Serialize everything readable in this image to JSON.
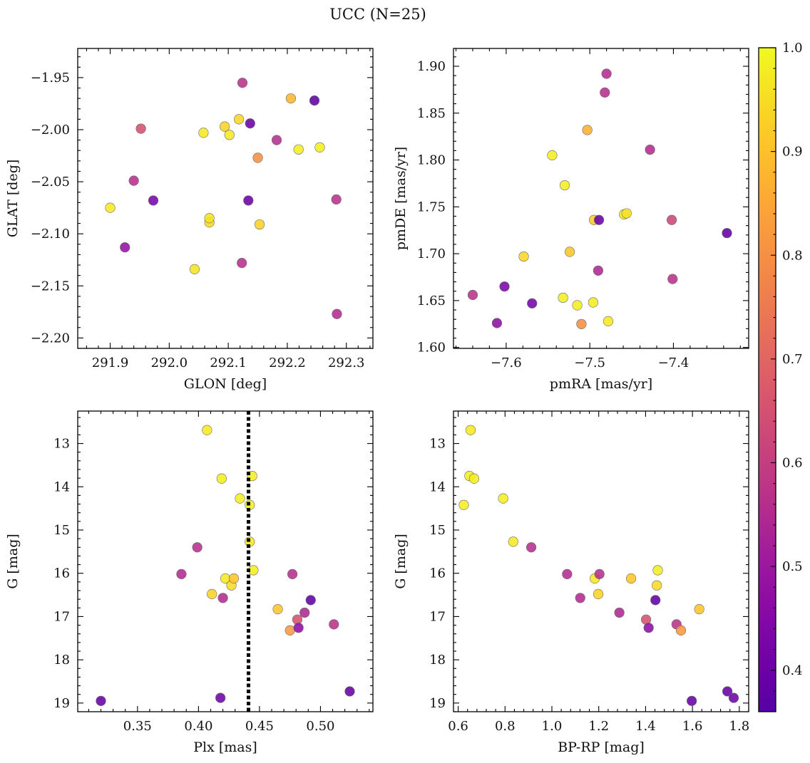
{
  "figure": {
    "title": "UCC (N=25)"
  },
  "chart_data": [
    {
      "type": "scatter",
      "name": "glon-glat",
      "xlabel": "GLON [deg]",
      "ylabel": "GLAT [deg]",
      "xlim": [
        291.845,
        292.345
      ],
      "ylim": [
        -2.21,
        -1.922
      ],
      "xticks": [
        291.9,
        292.0,
        292.1,
        292.2,
        292.3
      ],
      "xtick_labels": [
        "291.9",
        "292.0",
        "292.1",
        "292.2",
        "292.3"
      ],
      "yticks": [
        -1.95,
        -2.0,
        -2.05,
        -2.1,
        -2.15,
        -2.2
      ],
      "ytick_labels": [
        "−1.95",
        "−2.00",
        "−2.05",
        "−2.10",
        "−2.15",
        "−2.20"
      ],
      "y_inverted": false,
      "x": [
        291.9,
        291.925,
        291.94,
        291.952,
        291.973,
        292.043,
        292.058,
        292.068,
        292.068,
        292.094,
        292.102,
        292.118,
        292.123,
        292.124,
        292.134,
        292.137,
        292.15,
        292.153,
        292.182,
        292.206,
        292.219,
        292.246,
        292.255,
        292.283,
        292.284
      ],
      "y": [
        -2.075,
        -2.113,
        -2.049,
        -1.999,
        -2.068,
        -2.134,
        -2.003,
        -2.089,
        -2.085,
        -1.997,
        -2.005,
        -1.99,
        -2.128,
        -1.955,
        -2.068,
        -1.994,
        -2.027,
        -2.091,
        -2.01,
        -1.97,
        -2.019,
        -1.972,
        -2.017,
        -2.067,
        -2.177
      ],
      "c": [
        0.97,
        0.48,
        0.56,
        0.65,
        0.42,
        0.96,
        0.97,
        0.95,
        0.96,
        0.93,
        0.97,
        0.94,
        0.56,
        0.57,
        0.4,
        0.39,
        0.8,
        0.93,
        0.56,
        0.88,
        0.98,
        0.38,
        0.98,
        0.57,
        0.55
      ]
    },
    {
      "type": "scatter",
      "name": "pmra-pmde",
      "xlabel": "pmRA [mas/yr]",
      "ylabel": "pmDE [mas/yr]",
      "xlim": [
        -7.663,
        -7.31
      ],
      "ylim": [
        1.599,
        1.919
      ],
      "xticks": [
        -7.6,
        -7.5,
        -7.4
      ],
      "xtick_labels": [
        "−7.6",
        "−7.5",
        "−7.4"
      ],
      "yticks": [
        1.6,
        1.65,
        1.7,
        1.75,
        1.8,
        1.85,
        1.9
      ],
      "ytick_labels": [
        "1.60",
        "1.65",
        "1.70",
        "1.75",
        "1.80",
        "1.85",
        "1.90"
      ],
      "y_inverted": false,
      "x": [
        -7.64,
        -7.611,
        -7.602,
        -7.579,
        -7.569,
        -7.545,
        -7.532,
        -7.53,
        -7.524,
        -7.515,
        -7.51,
        -7.503,
        -7.496,
        -7.495,
        -7.49,
        -7.489,
        -7.482,
        -7.48,
        -7.478,
        -7.459,
        -7.456,
        -7.428,
        -7.402,
        -7.401,
        -7.336
      ],
      "y": [
        1.656,
        1.626,
        1.665,
        1.697,
        1.647,
        1.805,
        1.653,
        1.773,
        1.702,
        1.645,
        1.625,
        1.832,
        1.648,
        1.736,
        1.682,
        1.736,
        1.872,
        1.892,
        1.628,
        1.742,
        1.743,
        1.811,
        1.736,
        1.673,
        1.722
      ],
      "c": [
        0.57,
        0.47,
        0.43,
        0.94,
        0.42,
        0.98,
        0.98,
        0.98,
        0.91,
        0.98,
        0.8,
        0.87,
        0.98,
        0.92,
        0.54,
        0.4,
        0.56,
        0.55,
        0.97,
        0.97,
        0.96,
        0.55,
        0.62,
        0.57,
        0.38
      ]
    },
    {
      "type": "scatter",
      "name": "plx-g",
      "xlabel": "Plx [mas]",
      "ylabel": "G [mag]",
      "xlim": [
        0.301,
        0.543
      ],
      "ylim": [
        19.2,
        12.25
      ],
      "xticks": [
        0.35,
        0.4,
        0.45,
        0.5
      ],
      "xtick_labels": [
        "0.35",
        "0.40",
        "0.45",
        "0.50"
      ],
      "yticks": [
        13,
        14,
        15,
        16,
        17,
        18,
        19
      ],
      "ytick_labels": [
        "13",
        "14",
        "15",
        "16",
        "17",
        "18",
        "19"
      ],
      "y_inverted": true,
      "vline": 0.441,
      "x": [
        0.32,
        0.386,
        0.399,
        0.407,
        0.411,
        0.418,
        0.419,
        0.42,
        0.422,
        0.427,
        0.429,
        0.434,
        0.442,
        0.442,
        0.444,
        0.445,
        0.465,
        0.475,
        0.477,
        0.481,
        0.482,
        0.487,
        0.492,
        0.511,
        0.524
      ],
      "y": [
        18.95,
        16.02,
        15.4,
        12.69,
        16.48,
        18.88,
        13.81,
        16.57,
        16.12,
        16.28,
        16.12,
        14.27,
        14.42,
        15.27,
        13.75,
        15.93,
        16.83,
        17.32,
        16.02,
        17.07,
        17.26,
        16.91,
        16.62,
        17.18,
        18.73
      ],
      "c": [
        0.39,
        0.55,
        0.56,
        0.97,
        0.93,
        0.41,
        0.98,
        0.55,
        0.97,
        0.95,
        0.91,
        0.98,
        0.98,
        0.97,
        0.98,
        0.98,
        0.91,
        0.82,
        0.56,
        0.65,
        0.47,
        0.54,
        0.38,
        0.57,
        0.39
      ]
    },
    {
      "type": "scatter",
      "name": "bprp-g",
      "xlabel": "BP-RP [mag]",
      "ylabel": "G [mag]",
      "xlim": [
        0.58,
        1.84
      ],
      "ylim": [
        19.2,
        12.25
      ],
      "xticks": [
        0.6,
        0.8,
        1.0,
        1.2,
        1.4,
        1.6,
        1.8
      ],
      "xtick_labels": [
        "0.6",
        "0.8",
        "1.0",
        "1.2",
        "1.4",
        "1.6",
        "1.8"
      ],
      "yticks": [
        13,
        14,
        15,
        16,
        17,
        18,
        19
      ],
      "ytick_labels": [
        "13",
        "14",
        "15",
        "16",
        "17",
        "18",
        "19"
      ],
      "y_inverted": true,
      "x": [
        0.624,
        0.648,
        0.653,
        0.668,
        0.792,
        0.835,
        0.912,
        1.065,
        1.121,
        1.183,
        1.198,
        1.203,
        1.288,
        1.338,
        1.402,
        1.413,
        1.442,
        1.448,
        1.452,
        1.532,
        1.551,
        1.597,
        1.629,
        1.749,
        1.776
      ],
      "y": [
        14.42,
        13.75,
        12.69,
        13.81,
        14.27,
        15.27,
        15.4,
        16.02,
        16.57,
        16.12,
        16.48,
        16.02,
        16.91,
        16.12,
        17.07,
        17.26,
        16.62,
        16.28,
        15.93,
        17.18,
        17.32,
        18.95,
        16.83,
        18.73,
        18.88
      ],
      "c": [
        0.98,
        0.98,
        0.97,
        0.98,
        0.98,
        0.97,
        0.56,
        0.55,
        0.55,
        0.97,
        0.93,
        0.56,
        0.54,
        0.91,
        0.65,
        0.47,
        0.38,
        0.95,
        0.98,
        0.57,
        0.82,
        0.39,
        0.91,
        0.39,
        0.41
      ]
    }
  ],
  "colorbar": {
    "cmap": "plasma",
    "vmin": 0.36,
    "vmax": 1.0,
    "ticks": [
      0.4,
      0.5,
      0.6,
      0.7,
      0.8,
      0.9,
      1.0
    ],
    "tick_labels": [
      "0.4",
      "0.5",
      "0.6",
      "0.7",
      "0.8",
      "0.9",
      "1.0"
    ]
  }
}
